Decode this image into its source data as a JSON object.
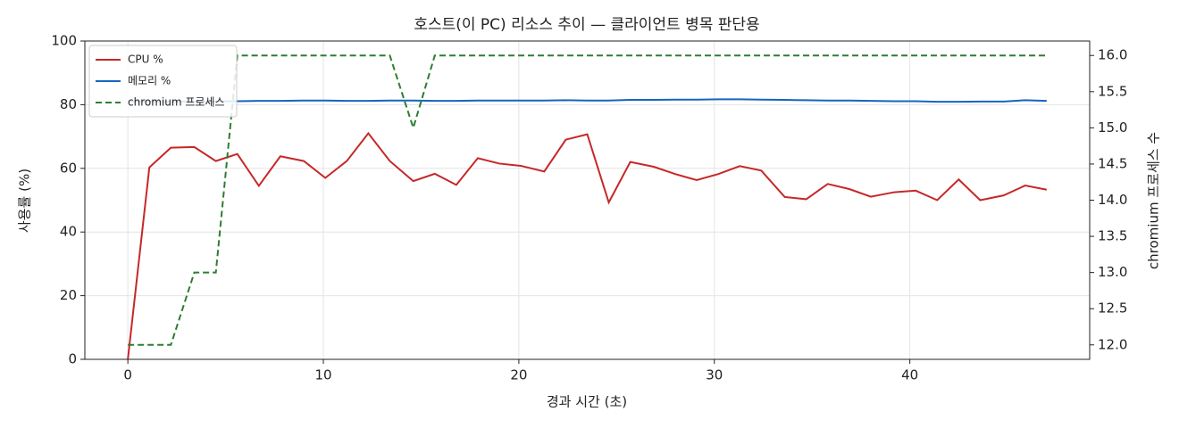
{
  "chart_data": {
    "type": "line",
    "title": "호스트(이 PC) 리소스 추이 — 클라이언트 병목 판단용",
    "x_label": "경과 시간 (초)",
    "y_label": "사용률 (%)",
    "y2_label": "chromium 프로세스 수",
    "x": [
      0,
      1.1,
      2.2,
      3.4,
      4.5,
      5.6,
      6.7,
      7.8,
      9.0,
      10.1,
      11.2,
      12.3,
      13.4,
      14.6,
      15.7,
      16.8,
      17.9,
      19.0,
      20.1,
      21.3,
      22.4,
      23.5,
      24.6,
      25.7,
      26.9,
      28.0,
      29.1,
      30.2,
      31.3,
      32.4,
      33.6,
      34.7,
      35.8,
      36.9,
      38.0,
      39.2,
      40.3,
      41.4,
      42.5,
      43.6,
      44.8,
      45.9,
      47.0
    ],
    "series": [
      {
        "name": "CPU %",
        "color": "#c62828",
        "linestyle": "solid",
        "values": [
          0,
          60.3,
          66.5,
          66.7,
          62.3,
          64.5,
          54.5,
          63.8,
          62.3,
          57,
          62.3,
          71,
          62.3,
          56,
          58.3,
          54.8,
          63.2,
          61.5,
          60.8,
          59,
          69,
          70.7,
          49.3,
          62,
          60.5,
          58.2,
          56.3,
          58.2,
          60.7,
          59.3,
          51,
          50.3,
          55.1,
          53.5,
          51.1,
          52.5,
          53,
          50,
          56.5,
          50,
          51.5,
          54.6,
          53.3
        ]
      },
      {
        "name": "메모리 %",
        "color": "#1565c0",
        "linestyle": "solid",
        "values": [
          81,
          81,
          81,
          81,
          81,
          81.1,
          81.2,
          81.2,
          81.3,
          81.3,
          81.2,
          81.2,
          81.3,
          81.3,
          81.2,
          81.2,
          81.3,
          81.3,
          81.3,
          81.3,
          81.4,
          81.3,
          81.3,
          81.5,
          81.5,
          81.6,
          81.6,
          81.7,
          81.7,
          81.6,
          81.5,
          81.4,
          81.3,
          81.3,
          81.2,
          81.1,
          81.1,
          80.9,
          80.9,
          81,
          81,
          81.4,
          81.2
        ]
      },
      {
        "name": "chromium 프로세스",
        "color": "#2e7d32",
        "linestyle": "dashed",
        "axis": "y2",
        "values": [
          12,
          12,
          12,
          13,
          13,
          16,
          16,
          16,
          16,
          16,
          16,
          16,
          16,
          15,
          16,
          16,
          16,
          16,
          16,
          16,
          16,
          16,
          16,
          16,
          16,
          16,
          16,
          16,
          16,
          16,
          16,
          16,
          16,
          16,
          16,
          16,
          16,
          16,
          16,
          16,
          16,
          16,
          16
        ]
      }
    ],
    "xlim": [
      -2.2,
      49.2
    ],
    "xticks": [
      0,
      10,
      20,
      30,
      40
    ],
    "ylim": [
      0,
      100
    ],
    "yticks": [
      0,
      20,
      40,
      60,
      80,
      100
    ],
    "y2lim": [
      11.8,
      16.2
    ],
    "y2ticks": [
      {
        "value": 12,
        "label": "12.0"
      },
      12.5,
      {
        "value": 13,
        "label": "13.0"
      },
      13.5,
      {
        "value": 14,
        "label": "14.0"
      },
      14.5,
      {
        "value": 15,
        "label": "15.0"
      },
      15.5,
      {
        "value": 16,
        "label": "16.0"
      }
    ],
    "grid": true,
    "legend": "upper-left"
  }
}
